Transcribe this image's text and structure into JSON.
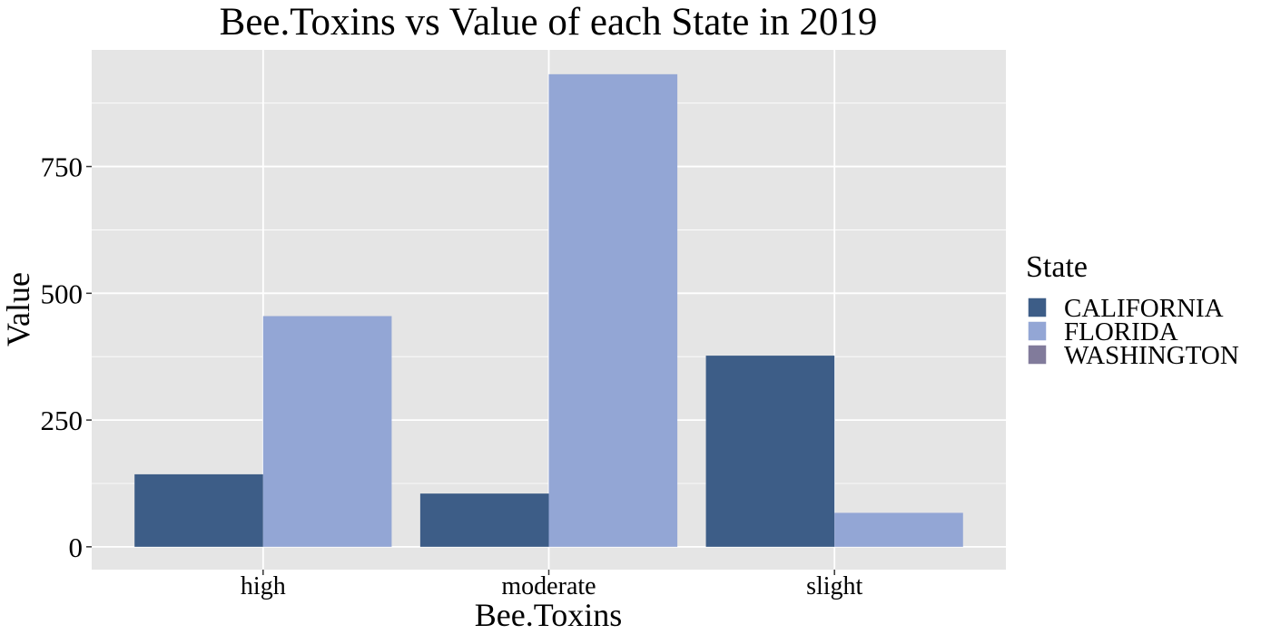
{
  "chart_data": {
    "type": "bar",
    "title": "Bee.Toxins vs Value of each State in 2019",
    "xlabel": "Bee.Toxins",
    "ylabel": "Value",
    "categories": [
      "high",
      "moderate",
      "slight"
    ],
    "series": [
      {
        "name": "CALIFORNIA",
        "values": [
          143,
          105,
          377
        ],
        "color": "#3d5d87"
      },
      {
        "name": "FLORIDA",
        "values": [
          455,
          932,
          67
        ],
        "color": "#93a6d5"
      },
      {
        "name": "WASHINGTON",
        "values": [
          null,
          null,
          null
        ],
        "color": "#817b9b"
      }
    ],
    "ylim": [
      -45,
      980
    ],
    "yticks": [
      0,
      250,
      500,
      750
    ],
    "ytick_labels": [
      "0",
      "250",
      "500",
      "750"
    ],
    "grid": true,
    "panel_background": "#e5e5e5",
    "grid_color": "#ffffff",
    "legend": {
      "title": "State",
      "position": "right"
    }
  }
}
